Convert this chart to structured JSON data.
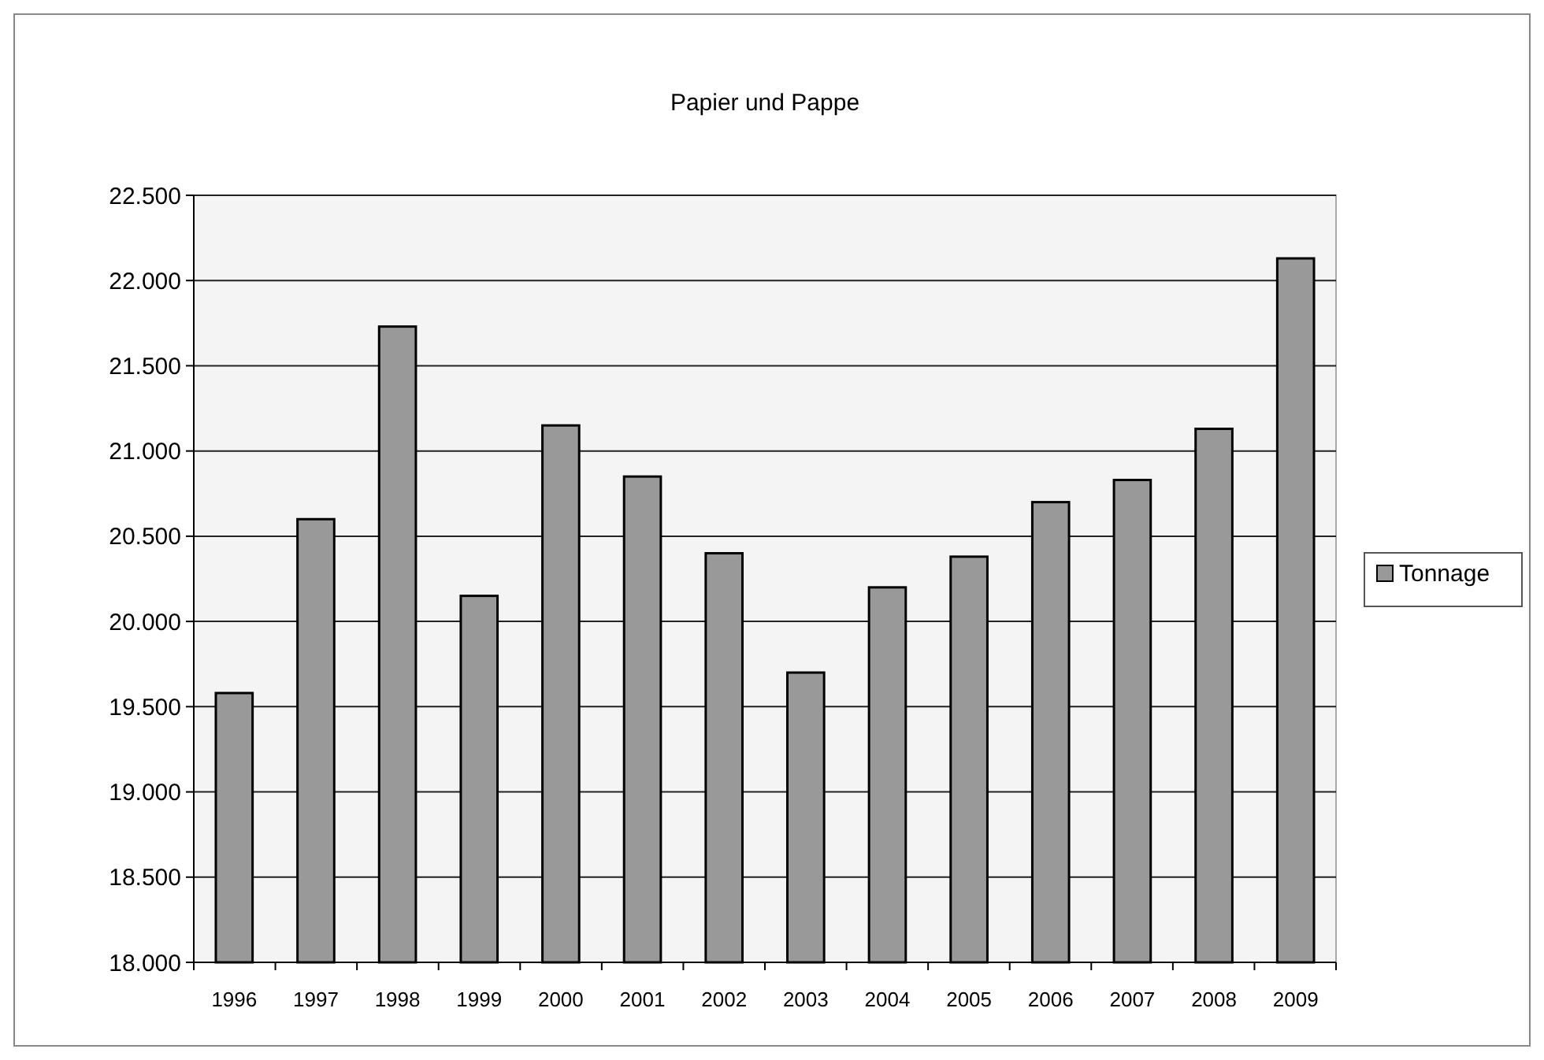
{
  "chart_data": {
    "type": "bar",
    "title": "Papier und Pappe",
    "categories": [
      "1996",
      "1997",
      "1998",
      "1999",
      "2000",
      "2001",
      "2002",
      "2003",
      "2004",
      "2005",
      "2006",
      "2007",
      "2008",
      "2009"
    ],
    "series": [
      {
        "name": "Tonnage",
        "color": "#999999",
        "values": [
          19580,
          20600,
          21730,
          20150,
          21150,
          20850,
          20400,
          19700,
          20200,
          20380,
          20700,
          20830,
          21130,
          22130
        ]
      }
    ],
    "ylim": [
      18000,
      22500
    ],
    "yticks": [
      {
        "value": 18000,
        "label": "18.000"
      },
      {
        "value": 18500,
        "label": "18.500"
      },
      {
        "value": 19000,
        "label": "19.000"
      },
      {
        "value": 19500,
        "label": "19.500"
      },
      {
        "value": 20000,
        "label": "20.000"
      },
      {
        "value": 20500,
        "label": "20.500"
      },
      {
        "value": 21000,
        "label": "21.000"
      },
      {
        "value": 21500,
        "label": "21.500"
      },
      {
        "value": 22000,
        "label": "22.000"
      },
      {
        "value": 22500,
        "label": "22.500"
      }
    ],
    "grid": "y",
    "legend": "right"
  }
}
